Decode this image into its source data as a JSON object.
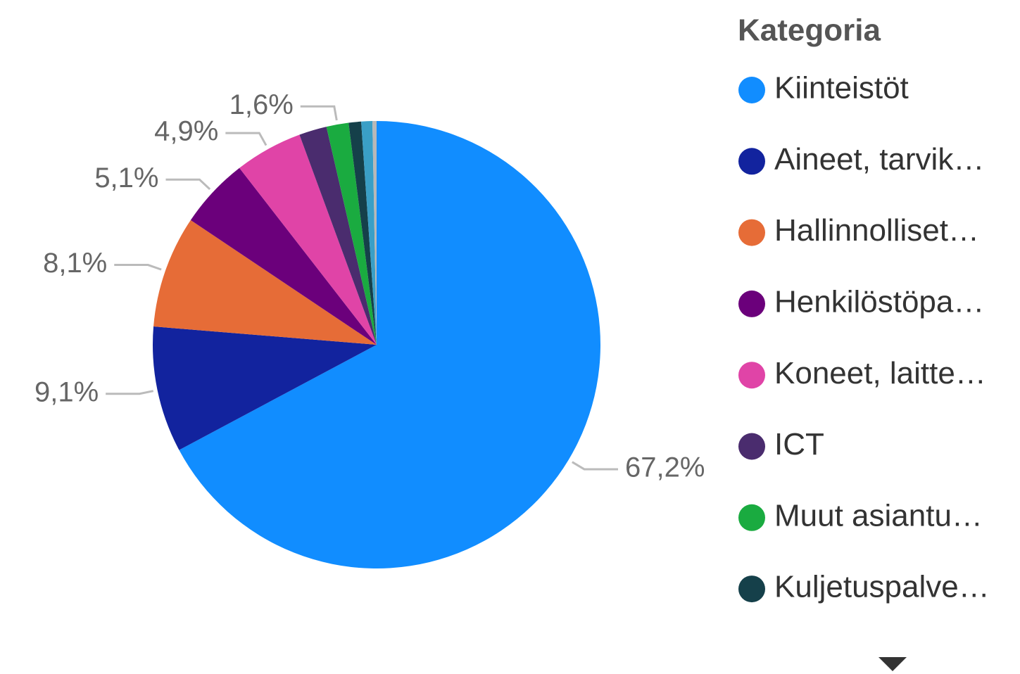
{
  "chart_data": {
    "type": "pie",
    "legend_title": "Kategoria",
    "categories": [
      "Kiinteistöt",
      "Aineet, tarvik…",
      "Hallinnolliset…",
      "Henkilöstöpa…",
      "Koneet, laitte…",
      "ICT",
      "Muut asiantu…",
      "Kuljetuspalve…",
      null,
      null
    ],
    "values": [
      67.2,
      9.1,
      8.1,
      5.1,
      4.9,
      2.0,
      1.6,
      0.9,
      0.8,
      0.3
    ],
    "value_labels": [
      "67,2%",
      "9,1%",
      "8,1%",
      "5,1%",
      "4,9%",
      null,
      "1,6%",
      null,
      null,
      null
    ],
    "colors": [
      "#118DFF",
      "#12239E",
      "#E66C37",
      "#6B007B",
      "#E044A7",
      "#4A2C6E",
      "#1AAB40",
      "#15404A",
      "#3A9FC6",
      "#B8B8B8"
    ],
    "legend": "right"
  }
}
